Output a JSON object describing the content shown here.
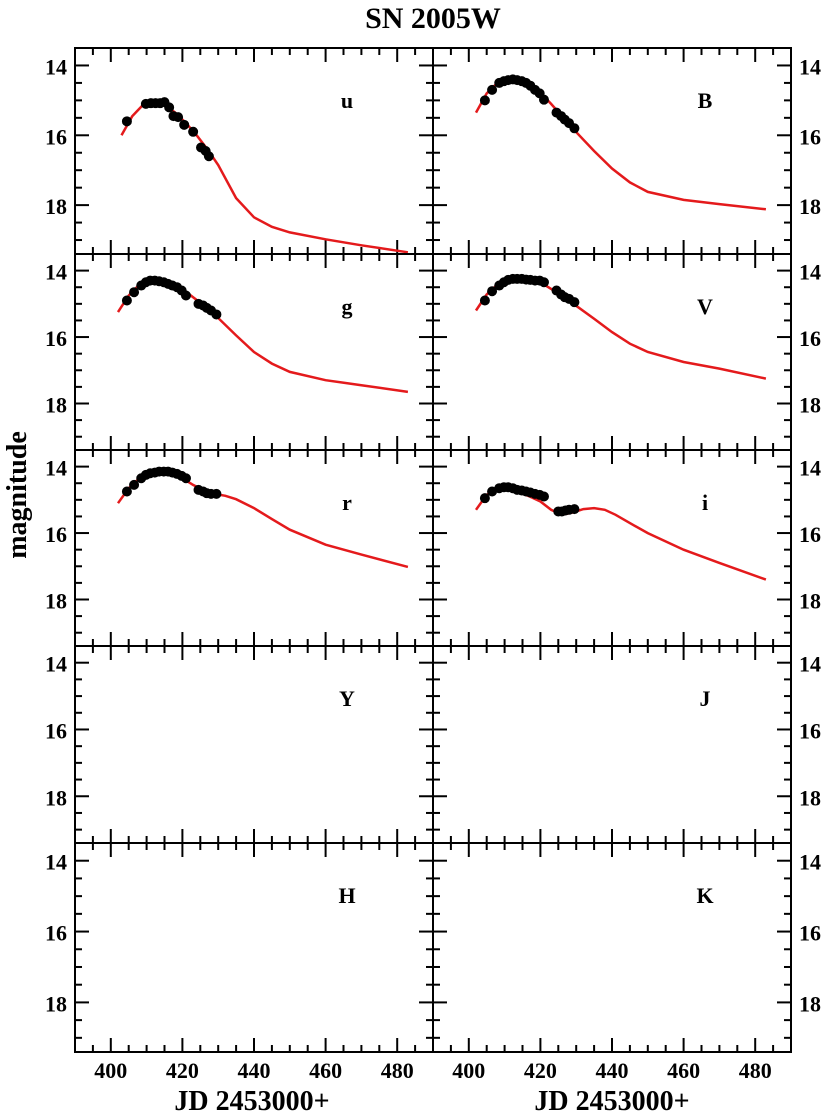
{
  "chart_data": {
    "type": "scatter",
    "title": "SN 2005W",
    "xlabel": "JD 2453000+",
    "ylabel": "magnitude",
    "xlim": [
      390,
      490
    ],
    "ylim": [
      13.5,
      19.4
    ],
    "y_inverted": true,
    "x_ticks": [
      400,
      420,
      440,
      460,
      480
    ],
    "y_ticks": [
      14,
      16,
      18
    ],
    "grid": false,
    "panels": [
      {
        "band": "u",
        "model": {
          "x": [
            403,
            406,
            409,
            412,
            415,
            418,
            421,
            424,
            427,
            430,
            435,
            440,
            445,
            450,
            460,
            470,
            483
          ],
          "y": [
            16.0,
            15.45,
            15.13,
            15.05,
            15.12,
            15.35,
            15.65,
            16.0,
            16.4,
            16.85,
            17.8,
            18.35,
            18.62,
            18.78,
            18.98,
            19.15,
            19.35
          ]
        },
        "points": {
          "x": [
            404.5,
            409.8,
            411.2,
            412.5,
            413.8,
            415.0,
            416.3,
            417.5,
            418.8,
            420.5,
            423.0,
            425.2,
            426.5,
            427.4
          ],
          "y": [
            15.6,
            15.1,
            15.08,
            15.08,
            15.08,
            15.05,
            15.2,
            15.45,
            15.48,
            15.7,
            15.9,
            16.35,
            16.45,
            16.6
          ]
        }
      },
      {
        "band": "B",
        "model": {
          "x": [
            402,
            405,
            408,
            411,
            414,
            417,
            420,
            423,
            426,
            429,
            435,
            440,
            445,
            450,
            460,
            470,
            483
          ],
          "y": [
            15.35,
            14.8,
            14.5,
            14.4,
            14.42,
            14.55,
            14.78,
            15.1,
            15.45,
            15.8,
            16.45,
            16.95,
            17.35,
            17.62,
            17.85,
            17.97,
            18.12
          ]
        },
        "points": {
          "x": [
            404.5,
            406.5,
            408.5,
            409.8,
            411.0,
            412.3,
            413.5,
            414.8,
            416.0,
            417.2,
            418.5,
            419.8,
            421.0,
            424.5,
            425.8,
            426.8,
            428.0,
            429.5
          ],
          "y": [
            15.0,
            14.7,
            14.5,
            14.45,
            14.42,
            14.4,
            14.42,
            14.45,
            14.5,
            14.58,
            14.7,
            14.8,
            14.98,
            15.35,
            15.45,
            15.55,
            15.65,
            15.8
          ]
        }
      },
      {
        "band": "g",
        "model": {
          "x": [
            402,
            405,
            408,
            411,
            414,
            417,
            420,
            423,
            426,
            429,
            435,
            440,
            445,
            450,
            460,
            470,
            483
          ],
          "y": [
            15.25,
            14.75,
            14.42,
            14.3,
            14.3,
            14.38,
            14.55,
            14.8,
            15.05,
            15.32,
            15.95,
            16.45,
            16.8,
            17.05,
            17.3,
            17.45,
            17.65
          ]
        },
        "points": {
          "x": [
            404.5,
            406.5,
            408.5,
            409.8,
            411.0,
            412.3,
            413.5,
            414.8,
            416.0,
            417.2,
            418.5,
            419.8,
            421.0,
            424.5,
            425.8,
            426.8,
            428.0,
            429.5
          ],
          "y": [
            14.9,
            14.65,
            14.45,
            14.35,
            14.3,
            14.3,
            14.32,
            14.35,
            14.4,
            14.45,
            14.5,
            14.6,
            14.75,
            15.0,
            15.05,
            15.12,
            15.2,
            15.32
          ]
        }
      },
      {
        "band": "V",
        "model": {
          "x": [
            402,
            405,
            408,
            411,
            414,
            417,
            420,
            423,
            426,
            429,
            435,
            440,
            445,
            450,
            460,
            470,
            483
          ],
          "y": [
            15.2,
            14.72,
            14.42,
            14.28,
            14.22,
            14.25,
            14.35,
            14.55,
            14.78,
            14.98,
            15.45,
            15.85,
            16.2,
            16.45,
            16.75,
            16.95,
            17.25
          ]
        },
        "points": {
          "x": [
            404.5,
            406.5,
            408.5,
            409.8,
            411.0,
            412.3,
            413.5,
            414.8,
            416.0,
            417.2,
            418.5,
            419.8,
            421.0,
            424.5,
            425.8,
            426.8,
            428.0,
            429.5
          ],
          "y": [
            14.9,
            14.62,
            14.45,
            14.35,
            14.28,
            14.25,
            14.25,
            14.25,
            14.27,
            14.28,
            14.3,
            14.3,
            14.35,
            14.6,
            14.72,
            14.8,
            14.85,
            14.95
          ]
        }
      },
      {
        "band": "r",
        "model": {
          "x": [
            402,
            405,
            408,
            411,
            414,
            417,
            420,
            423,
            426,
            429,
            432,
            435,
            440,
            445,
            450,
            460,
            470,
            483
          ],
          "y": [
            15.1,
            14.65,
            14.35,
            14.2,
            14.15,
            14.2,
            14.35,
            14.55,
            14.72,
            14.82,
            14.88,
            14.98,
            15.25,
            15.58,
            15.9,
            16.35,
            16.65,
            17.02
          ]
        },
        "points": {
          "x": [
            404.5,
            406.5,
            408.5,
            409.8,
            411.0,
            412.3,
            413.5,
            414.8,
            416.0,
            417.2,
            418.5,
            419.8,
            421.0,
            424.5,
            425.8,
            426.8,
            428.0,
            429.5
          ],
          "y": [
            14.75,
            14.55,
            14.35,
            14.25,
            14.2,
            14.18,
            14.15,
            14.15,
            14.15,
            14.18,
            14.22,
            14.28,
            14.35,
            14.7,
            14.75,
            14.8,
            14.82,
            14.82
          ]
        }
      },
      {
        "band": "i",
        "model": {
          "x": [
            402,
            405,
            408,
            411,
            414,
            417,
            420,
            423,
            426,
            429,
            432,
            435,
            438,
            441,
            445,
            450,
            460,
            470,
            483
          ],
          "y": [
            15.3,
            14.85,
            14.65,
            14.68,
            14.78,
            14.9,
            15.05,
            15.3,
            15.45,
            15.38,
            15.28,
            15.25,
            15.3,
            15.45,
            15.7,
            16.0,
            16.5,
            16.9,
            17.4
          ]
        },
        "points": {
          "x": [
            404.5,
            406.5,
            408.5,
            409.8,
            411.0,
            412.3,
            413.5,
            414.8,
            416.0,
            417.2,
            418.5,
            419.8,
            421.0,
            425.0,
            426.0,
            427.0,
            428.0,
            429.5
          ],
          "y": [
            14.95,
            14.75,
            14.65,
            14.62,
            14.62,
            14.65,
            14.7,
            14.72,
            14.75,
            14.78,
            14.82,
            14.85,
            14.9,
            15.35,
            15.35,
            15.32,
            15.3,
            15.28
          ]
        }
      },
      {
        "band": "Y",
        "model": null,
        "points": null
      },
      {
        "band": "J",
        "model": null,
        "points": null
      },
      {
        "band": "H",
        "model": null,
        "points": null
      },
      {
        "band": "K",
        "model": null,
        "points": null
      }
    ],
    "model_color": "#e41a1c",
    "point_color": "#000000"
  }
}
